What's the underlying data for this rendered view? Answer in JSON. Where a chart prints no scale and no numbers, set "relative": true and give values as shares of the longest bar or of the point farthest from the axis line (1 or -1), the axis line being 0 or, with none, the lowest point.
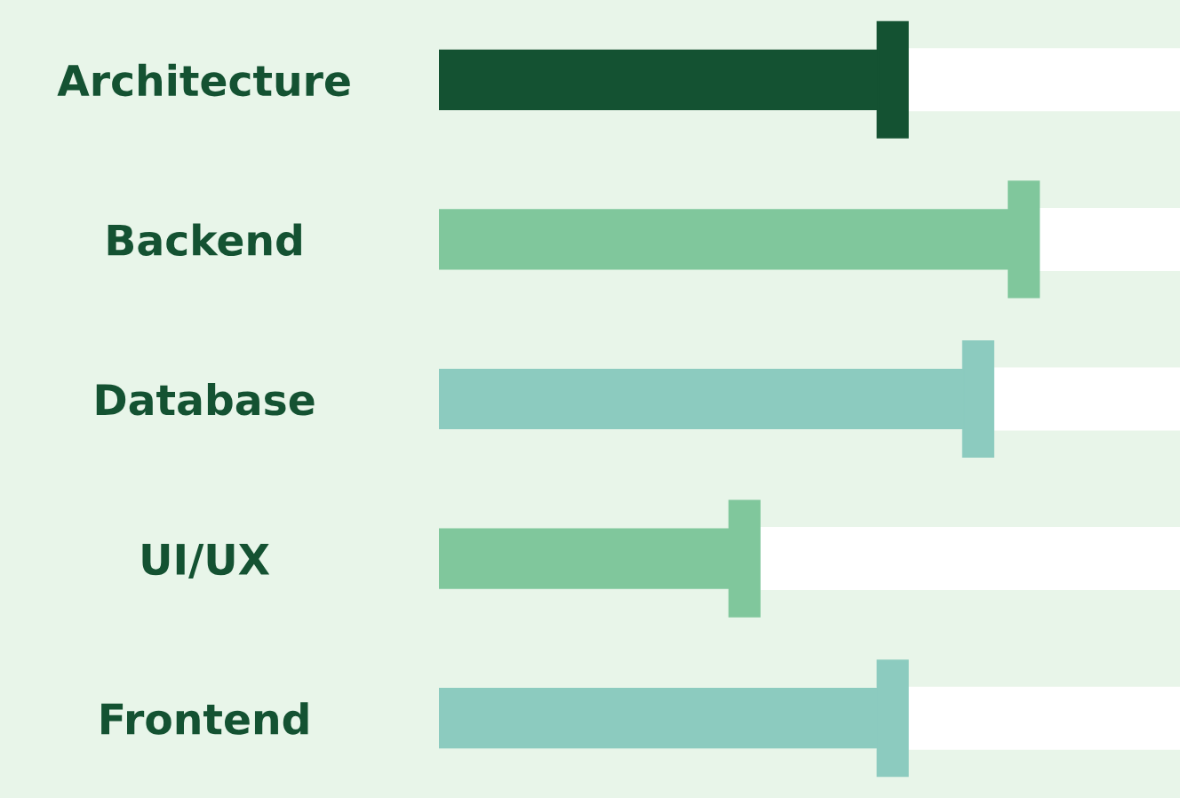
{
  "chart_data": {
    "type": "bar",
    "orientation": "horizontal",
    "relative": true,
    "categories": [
      "Architecture",
      "Backend",
      "Database",
      "UI/UX",
      "Frontend"
    ],
    "series": [
      {
        "colors": [
          "#145232",
          "#80c79c",
          "#8ccbbf",
          "#80c79c",
          "#8ccbbf"
        ],
        "values": [
          0.77,
          1,
          0.92,
          0.51,
          0.77
        ]
      }
    ],
    "grid": false,
    "legend": false,
    "tick_labels": "y"
  }
}
